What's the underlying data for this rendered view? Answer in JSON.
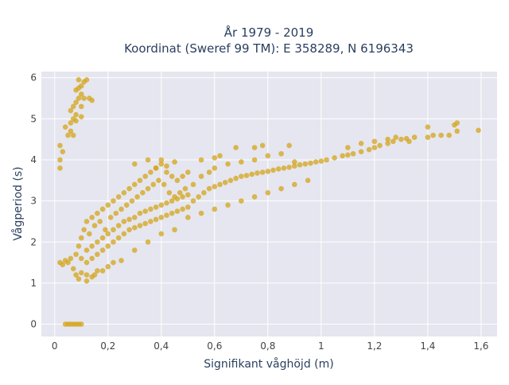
{
  "chart_data": {
    "type": "scatter",
    "title": "År 1979 - 2019",
    "subtitle": "Koordinat (Sweref 99 TM): E 358289, N 6196343",
    "xlabel": "Signifikant våghöjd (m)",
    "ylabel": "Vågperiod (s)",
    "xlim": [
      -0.05,
      1.66
    ],
    "ylim": [
      -0.3,
      6.15
    ],
    "xticks": [
      0,
      0.2,
      0.4,
      0.6,
      0.8,
      1,
      1.2,
      1.4,
      1.6
    ],
    "xtick_labels": [
      "0",
      "0,2",
      "0,4",
      "0,6",
      "0,8",
      "1",
      "1,2",
      "1,4",
      "1,6"
    ],
    "yticks": [
      0,
      1,
      2,
      3,
      4,
      5,
      6
    ],
    "ytick_labels": [
      "0",
      "1",
      "2",
      "3",
      "4",
      "5",
      "6"
    ],
    "grid": true,
    "legend": "none",
    "marker_color": "#d4a419",
    "plot_bg": "#e5e6ef",
    "series": [
      {
        "points": [
          [
            0.04,
            0.0
          ],
          [
            0.05,
            0.0
          ],
          [
            0.06,
            0.0
          ],
          [
            0.07,
            0.0
          ],
          [
            0.08,
            0.0
          ],
          [
            0.09,
            0.0
          ],
          [
            0.1,
            0.0
          ],
          [
            0.02,
            1.5
          ],
          [
            0.03,
            1.45
          ],
          [
            0.04,
            1.55
          ],
          [
            0.05,
            1.5
          ],
          [
            0.06,
            1.6
          ],
          [
            0.07,
            1.35
          ],
          [
            0.08,
            1.2
          ],
          [
            0.09,
            1.1
          ],
          [
            0.1,
            1.25
          ],
          [
            0.12,
            1.2
          ],
          [
            0.14,
            1.15
          ],
          [
            0.16,
            1.3
          ],
          [
            0.08,
            1.7
          ],
          [
            0.09,
            1.9
          ],
          [
            0.1,
            2.1
          ],
          [
            0.11,
            2.3
          ],
          [
            0.12,
            2.5
          ],
          [
            0.13,
            2.2
          ],
          [
            0.14,
            2.6
          ],
          [
            0.15,
            2.4
          ],
          [
            0.16,
            2.7
          ],
          [
            0.17,
            2.5
          ],
          [
            0.18,
            2.8
          ],
          [
            0.19,
            2.3
          ],
          [
            0.2,
            2.9
          ],
          [
            0.21,
            2.6
          ],
          [
            0.22,
            3.0
          ],
          [
            0.23,
            2.7
          ],
          [
            0.24,
            3.1
          ],
          [
            0.25,
            2.8
          ],
          [
            0.26,
            3.2
          ],
          [
            0.27,
            2.9
          ],
          [
            0.28,
            3.3
          ],
          [
            0.29,
            3.0
          ],
          [
            0.3,
            3.4
          ],
          [
            0.31,
            3.1
          ],
          [
            0.32,
            3.5
          ],
          [
            0.33,
            3.2
          ],
          [
            0.34,
            3.6
          ],
          [
            0.35,
            3.3
          ],
          [
            0.36,
            3.7
          ],
          [
            0.37,
            3.4
          ],
          [
            0.38,
            3.8
          ],
          [
            0.39,
            3.5
          ],
          [
            0.4,
            3.9
          ],
          [
            0.41,
            3.4
          ],
          [
            0.42,
            3.7
          ],
          [
            0.43,
            3.2
          ],
          [
            0.44,
            3.6
          ],
          [
            0.45,
            3.1
          ],
          [
            0.46,
            3.5
          ],
          [
            0.47,
            3.2
          ],
          [
            0.48,
            3.6
          ],
          [
            0.49,
            3.3
          ],
          [
            0.5,
            3.7
          ],
          [
            0.1,
            1.6
          ],
          [
            0.12,
            1.8
          ],
          [
            0.14,
            1.9
          ],
          [
            0.16,
            2.0
          ],
          [
            0.18,
            2.1
          ],
          [
            0.2,
            2.2
          ],
          [
            0.22,
            2.3
          ],
          [
            0.24,
            2.4
          ],
          [
            0.26,
            2.5
          ],
          [
            0.28,
            2.55
          ],
          [
            0.3,
            2.6
          ],
          [
            0.32,
            2.7
          ],
          [
            0.34,
            2.75
          ],
          [
            0.36,
            2.8
          ],
          [
            0.38,
            2.85
          ],
          [
            0.4,
            2.9
          ],
          [
            0.42,
            2.95
          ],
          [
            0.44,
            3.0
          ],
          [
            0.46,
            3.05
          ],
          [
            0.48,
            3.1
          ],
          [
            0.5,
            3.15
          ],
          [
            0.12,
            1.5
          ],
          [
            0.14,
            1.6
          ],
          [
            0.16,
            1.7
          ],
          [
            0.18,
            1.8
          ],
          [
            0.2,
            1.9
          ],
          [
            0.22,
            2.0
          ],
          [
            0.24,
            2.1
          ],
          [
            0.26,
            2.2
          ],
          [
            0.28,
            2.3
          ],
          [
            0.3,
            2.35
          ],
          [
            0.32,
            2.4
          ],
          [
            0.34,
            2.45
          ],
          [
            0.36,
            2.5
          ],
          [
            0.38,
            2.55
          ],
          [
            0.4,
            2.6
          ],
          [
            0.42,
            2.65
          ],
          [
            0.44,
            2.7
          ],
          [
            0.46,
            2.75
          ],
          [
            0.48,
            2.8
          ],
          [
            0.5,
            2.85
          ],
          [
            0.52,
            3.0
          ],
          [
            0.54,
            3.1
          ],
          [
            0.56,
            3.2
          ],
          [
            0.58,
            3.3
          ],
          [
            0.6,
            3.35
          ],
          [
            0.62,
            3.4
          ],
          [
            0.64,
            3.45
          ],
          [
            0.66,
            3.5
          ],
          [
            0.68,
            3.55
          ],
          [
            0.7,
            3.6
          ],
          [
            0.72,
            3.62
          ],
          [
            0.74,
            3.65
          ],
          [
            0.76,
            3.68
          ],
          [
            0.78,
            3.7
          ],
          [
            0.8,
            3.72
          ],
          [
            0.82,
            3.75
          ],
          [
            0.84,
            3.78
          ],
          [
            0.86,
            3.8
          ],
          [
            0.88,
            3.82
          ],
          [
            0.9,
            3.85
          ],
          [
            0.92,
            3.88
          ],
          [
            0.94,
            3.9
          ],
          [
            0.96,
            3.92
          ],
          [
            0.98,
            3.95
          ],
          [
            1.0,
            3.97
          ],
          [
            0.52,
            3.4
          ],
          [
            0.55,
            3.6
          ],
          [
            0.58,
            3.7
          ],
          [
            0.6,
            3.8
          ],
          [
            0.65,
            3.9
          ],
          [
            0.7,
            3.95
          ],
          [
            0.75,
            4.0
          ],
          [
            0.8,
            4.1
          ],
          [
            0.85,
            4.15
          ],
          [
            0.5,
            2.6
          ],
          [
            0.55,
            2.7
          ],
          [
            0.6,
            2.8
          ],
          [
            0.65,
            2.9
          ],
          [
            0.7,
            3.0
          ],
          [
            0.75,
            3.1
          ],
          [
            0.8,
            3.2
          ],
          [
            0.85,
            3.3
          ],
          [
            0.9,
            3.4
          ],
          [
            0.95,
            3.5
          ],
          [
            1.02,
            4.0
          ],
          [
            1.05,
            4.05
          ],
          [
            1.08,
            4.1
          ],
          [
            1.1,
            4.12
          ],
          [
            1.12,
            4.15
          ],
          [
            1.15,
            4.2
          ],
          [
            1.18,
            4.25
          ],
          [
            1.2,
            4.3
          ],
          [
            1.22,
            4.35
          ],
          [
            1.25,
            4.4
          ],
          [
            1.27,
            4.45
          ],
          [
            1.3,
            4.5
          ],
          [
            1.32,
            4.52
          ],
          [
            1.35,
            4.55
          ],
          [
            1.1,
            4.3
          ],
          [
            1.15,
            4.4
          ],
          [
            1.2,
            4.45
          ],
          [
            1.25,
            4.5
          ],
          [
            1.28,
            4.55
          ],
          [
            1.33,
            4.45
          ],
          [
            1.4,
            4.55
          ],
          [
            1.42,
            4.6
          ],
          [
            1.45,
            4.6
          ],
          [
            1.48,
            4.6
          ],
          [
            1.4,
            4.8
          ],
          [
            1.5,
            4.85
          ],
          [
            1.51,
            4.9
          ],
          [
            1.51,
            4.7
          ],
          [
            1.59,
            4.72
          ],
          [
            0.02,
            3.8
          ],
          [
            0.02,
            4.0
          ],
          [
            0.02,
            4.35
          ],
          [
            0.03,
            4.2
          ],
          [
            0.05,
            4.6
          ],
          [
            0.04,
            4.8
          ],
          [
            0.06,
            4.7
          ],
          [
            0.07,
            4.6
          ],
          [
            0.06,
            4.9
          ],
          [
            0.07,
            5.0
          ],
          [
            0.08,
            5.1
          ],
          [
            0.06,
            5.2
          ],
          [
            0.07,
            5.3
          ],
          [
            0.08,
            5.4
          ],
          [
            0.09,
            5.5
          ],
          [
            0.1,
            5.6
          ],
          [
            0.08,
            5.7
          ],
          [
            0.09,
            5.75
          ],
          [
            0.1,
            5.8
          ],
          [
            0.11,
            5.9
          ],
          [
            0.09,
            5.95
          ],
          [
            0.12,
            5.95
          ],
          [
            0.1,
            5.3
          ],
          [
            0.11,
            5.5
          ],
          [
            0.13,
            5.5
          ],
          [
            0.14,
            5.45
          ],
          [
            0.1,
            5.05
          ],
          [
            0.08,
            4.95
          ],
          [
            0.3,
            3.9
          ],
          [
            0.35,
            4.0
          ],
          [
            0.4,
            4.0
          ],
          [
            0.45,
            3.95
          ],
          [
            0.38,
            3.8
          ],
          [
            0.42,
            3.85
          ],
          [
            0.62,
            4.1
          ],
          [
            0.55,
            4.0
          ],
          [
            0.6,
            4.05
          ],
          [
            0.68,
            4.3
          ],
          [
            0.75,
            4.3
          ],
          [
            0.78,
            4.35
          ],
          [
            0.88,
            4.35
          ],
          [
            0.9,
            3.95
          ],
          [
            0.2,
            1.4
          ],
          [
            0.22,
            1.5
          ],
          [
            0.25,
            1.55
          ],
          [
            0.3,
            1.8
          ],
          [
            0.18,
            1.3
          ],
          [
            0.15,
            1.2
          ],
          [
            0.12,
            1.05
          ],
          [
            0.35,
            2.0
          ],
          [
            0.4,
            2.2
          ],
          [
            0.45,
            2.3
          ]
        ]
      }
    ]
  }
}
